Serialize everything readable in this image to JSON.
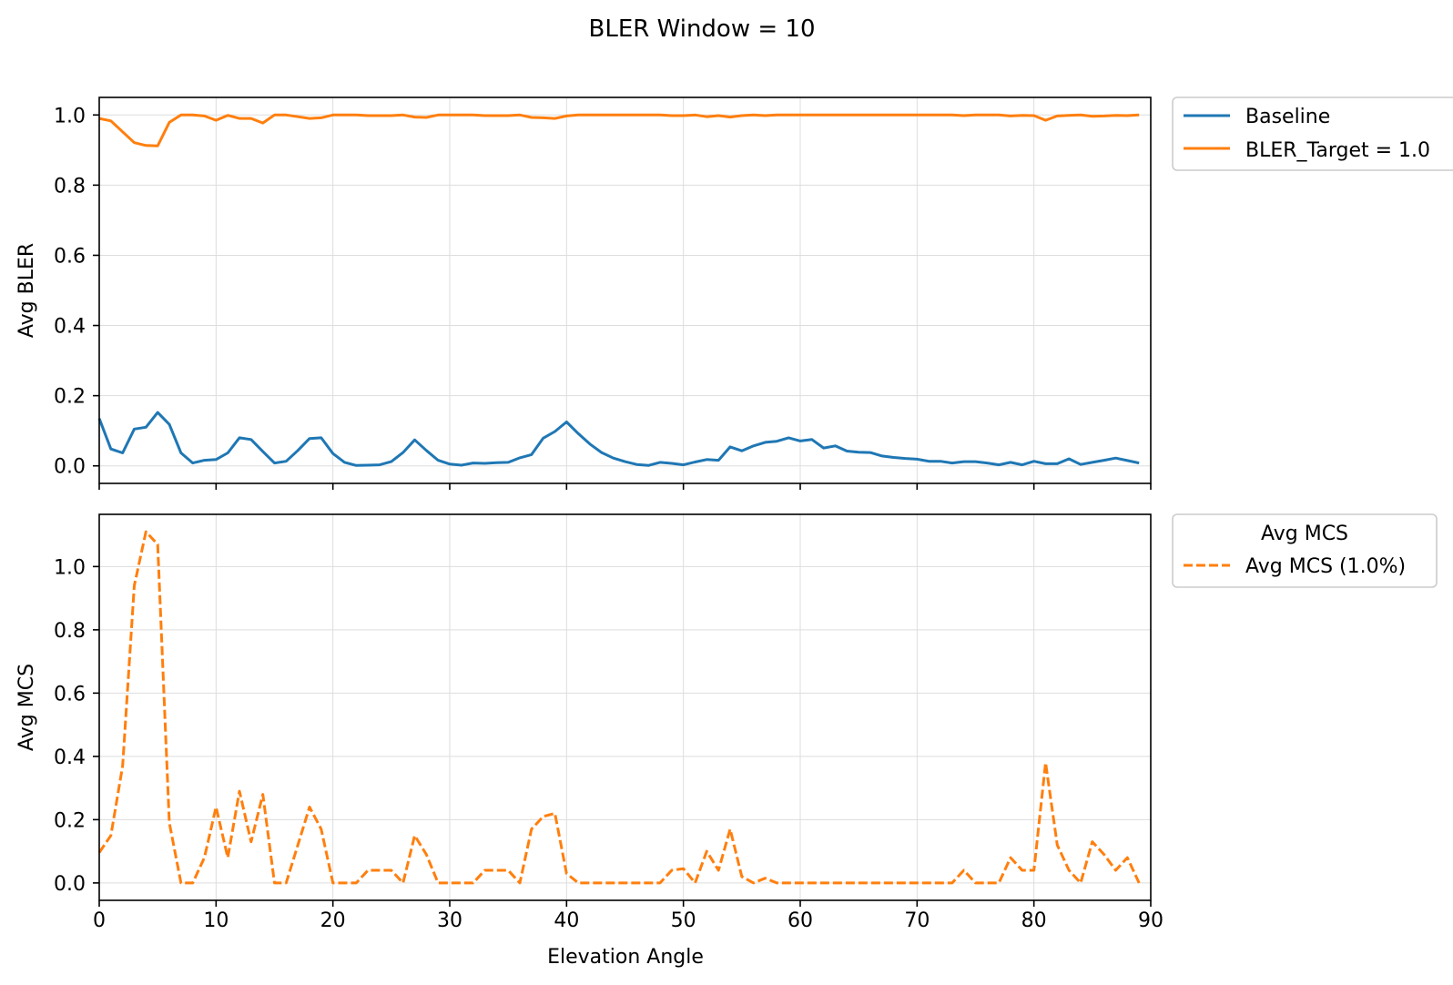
{
  "figure": {
    "title": "BLER Window = 10"
  },
  "colors": {
    "baseline": "#1f77b4",
    "target": "#ff7f0e",
    "grid": "#dddddd",
    "legend_border": "#cccccc"
  },
  "chart_data": [
    {
      "type": "line",
      "title": "",
      "xlabel": "",
      "ylabel": "Avg BLER",
      "xlim": [
        0,
        90
      ],
      "ylim": [
        -0.05,
        1.05
      ],
      "yticks": [
        "0.0",
        "0.2",
        "0.4",
        "0.6",
        "0.8",
        "1.0"
      ],
      "grid": true,
      "legend_position": "outside-upper-right",
      "legend_title": "",
      "x": [
        0,
        1,
        2,
        3,
        4,
        5,
        6,
        7,
        8,
        9,
        10,
        11,
        12,
        13,
        14,
        15,
        16,
        17,
        18,
        19,
        20,
        21,
        22,
        23,
        24,
        25,
        26,
        27,
        28,
        29,
        30,
        31,
        32,
        33,
        34,
        35,
        36,
        37,
        38,
        39,
        40,
        41,
        42,
        43,
        44,
        45,
        46,
        47,
        48,
        49,
        50,
        51,
        52,
        53,
        54,
        55,
        56,
        57,
        58,
        59,
        60,
        61,
        62,
        63,
        64,
        65,
        66,
        67,
        68,
        69,
        70,
        71,
        72,
        73,
        74,
        75,
        76,
        77,
        78,
        79,
        80,
        81,
        82,
        83,
        84,
        85,
        86,
        87,
        88,
        89
      ],
      "series": [
        {
          "name": "Baseline",
          "color": "#1f77b4",
          "style": "solid",
          "values": [
            0.135,
            0.048,
            0.037,
            0.105,
            0.11,
            0.152,
            0.118,
            0.037,
            0.008,
            0.016,
            0.018,
            0.037,
            0.08,
            0.075,
            0.041,
            0.008,
            0.013,
            0.044,
            0.078,
            0.08,
            0.035,
            0.01,
            0.001,
            0.002,
            0.003,
            0.012,
            0.038,
            0.074,
            0.044,
            0.016,
            0.005,
            0.002,
            0.008,
            0.007,
            0.009,
            0.01,
            0.023,
            0.032,
            0.079,
            0.098,
            0.125,
            0.092,
            0.062,
            0.038,
            0.022,
            0.012,
            0.004,
            0.001,
            0.01,
            0.007,
            0.003,
            0.011,
            0.018,
            0.016,
            0.054,
            0.043,
            0.057,
            0.067,
            0.07,
            0.08,
            0.071,
            0.075,
            0.051,
            0.057,
            0.042,
            0.039,
            0.038,
            0.028,
            0.024,
            0.021,
            0.019,
            0.013,
            0.013,
            0.008,
            0.012,
            0.012,
            0.008,
            0.003,
            0.01,
            0.003,
            0.013,
            0.006,
            0.006,
            0.02,
            0.004,
            0.01,
            0.016,
            0.022,
            0.015,
            0.008
          ]
        },
        {
          "name": "BLER_Target = 1.0",
          "color": "#ff7f0e",
          "style": "solid",
          "values": [
            0.99,
            0.983,
            0.952,
            0.921,
            0.913,
            0.912,
            0.979,
            1.0,
            1.0,
            0.997,
            0.985,
            0.999,
            0.99,
            0.99,
            0.977,
            1.0,
            1.0,
            0.995,
            0.99,
            0.992,
            1.0,
            1.0,
            1.0,
            0.998,
            0.998,
            0.998,
            1.0,
            0.994,
            0.993,
            1.0,
            1.0,
            1.0,
            1.0,
            0.998,
            0.998,
            0.998,
            1.0,
            0.993,
            0.992,
            0.99,
            0.997,
            1.0,
            1.0,
            1.0,
            1.0,
            1.0,
            1.0,
            1.0,
            1.0,
            0.998,
            0.998,
            1.0,
            0.995,
            0.998,
            0.994,
            0.998,
            1.0,
            0.998,
            1.0,
            1.0,
            1.0,
            1.0,
            1.0,
            1.0,
            1.0,
            1.0,
            1.0,
            1.0,
            1.0,
            1.0,
            1.0,
            1.0,
            1.0,
            1.0,
            0.998,
            1.0,
            1.0,
            1.0,
            0.997,
            0.999,
            0.998,
            0.985,
            0.997,
            0.999,
            1.0,
            0.996,
            0.997,
            0.999,
            0.998,
            1.0
          ]
        }
      ]
    },
    {
      "type": "line",
      "title": "",
      "xlabel": "Elevation Angle",
      "ylabel": "Avg MCS",
      "xlim": [
        0,
        90
      ],
      "ylim": [
        -0.055,
        1.165
      ],
      "xticks": [
        "0",
        "10",
        "20",
        "30",
        "40",
        "50",
        "60",
        "70",
        "80",
        "90"
      ],
      "yticks": [
        "0.0",
        "0.2",
        "0.4",
        "0.6",
        "0.8",
        "1.0"
      ],
      "grid": true,
      "legend_position": "outside-upper-right",
      "legend_title": "Avg MCS",
      "x": [
        0,
        1,
        2,
        3,
        4,
        5,
        6,
        7,
        8,
        9,
        10,
        11,
        12,
        13,
        14,
        15,
        16,
        17,
        18,
        19,
        20,
        21,
        22,
        23,
        24,
        25,
        26,
        27,
        28,
        29,
        30,
        31,
        32,
        33,
        34,
        35,
        36,
        37,
        38,
        39,
        40,
        41,
        42,
        43,
        44,
        45,
        46,
        47,
        48,
        49,
        50,
        51,
        52,
        53,
        54,
        55,
        56,
        57,
        58,
        59,
        60,
        61,
        62,
        63,
        64,
        65,
        66,
        67,
        68,
        69,
        70,
        71,
        72,
        73,
        74,
        75,
        76,
        77,
        78,
        79,
        80,
        81,
        82,
        83,
        84,
        85,
        86,
        87,
        88,
        89
      ],
      "series": [
        {
          "name": "Avg MCS (1.0%)",
          "color": "#ff7f0e",
          "style": "dashed",
          "values": [
            0.096,
            0.15,
            0.37,
            0.94,
            1.11,
            1.07,
            0.19,
            0.0,
            0.0,
            0.08,
            0.24,
            0.08,
            0.29,
            0.13,
            0.28,
            0.0,
            0.0,
            0.12,
            0.24,
            0.17,
            0.0,
            0.0,
            0.0,
            0.04,
            0.04,
            0.04,
            0.0,
            0.15,
            0.09,
            0.0,
            0.0,
            0.0,
            0.0,
            0.04,
            0.04,
            0.04,
            0.0,
            0.17,
            0.21,
            0.22,
            0.03,
            0.0,
            0.0,
            0.0,
            0.0,
            0.0,
            0.0,
            0.0,
            0.0,
            0.04,
            0.045,
            0.0,
            0.1,
            0.04,
            0.17,
            0.02,
            0.0,
            0.015,
            0.0,
            0.0,
            0.0,
            0.0,
            0.0,
            0.0,
            0.0,
            0.0,
            0.0,
            0.0,
            0.0,
            0.0,
            0.0,
            0.0,
            0.0,
            0.0,
            0.04,
            0.0,
            0.0,
            0.0,
            0.08,
            0.04,
            0.04,
            0.38,
            0.12,
            0.04,
            0.0,
            0.13,
            0.09,
            0.04,
            0.08,
            0.0
          ]
        }
      ]
    }
  ]
}
